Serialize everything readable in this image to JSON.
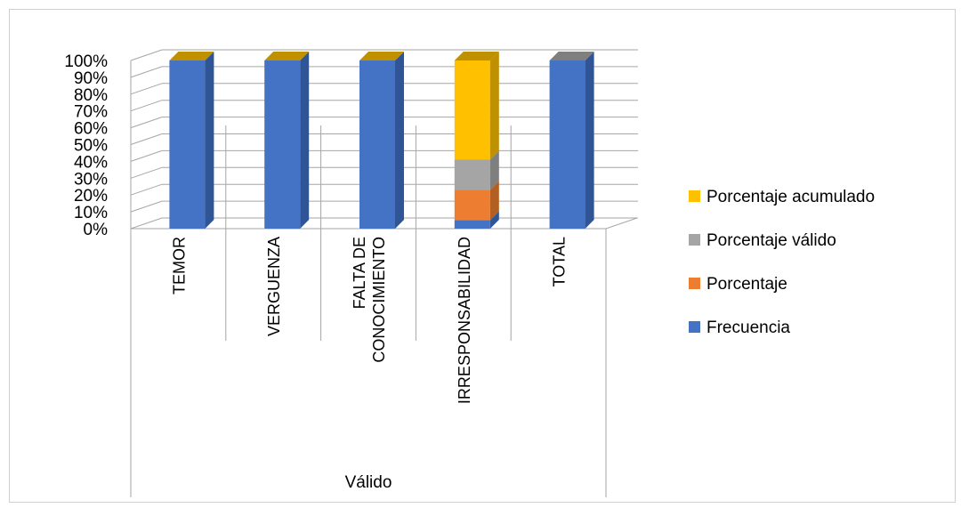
{
  "chart_data": {
    "type": "bar",
    "stacked": "percent",
    "three_d": true,
    "categories": [
      "TEMOR",
      "VERGUENZA",
      "FALTA DE CONOCIMIENTO",
      "IRRESPONSABILIDAD",
      "TOTAL"
    ],
    "category_lines": [
      [
        "TEMOR"
      ],
      [
        "VERGUENZA"
      ],
      [
        "FALTA DE",
        "CONOCIMIENTO"
      ],
      [
        "IRRESPONSABILIDAD"
      ],
      [
        "TOTAL"
      ]
    ],
    "group_label": "Válido",
    "series": [
      {
        "name": "Frecuencia",
        "color": "#4472C4",
        "side": "#2F5597",
        "values": [
          100,
          100,
          100,
          5,
          100
        ]
      },
      {
        "name": "Porcentaje",
        "color": "#ED7D31",
        "side": "#B45F22",
        "values": [
          0,
          0,
          0,
          18,
          0
        ]
      },
      {
        "name": "Porcentaje válido",
        "color": "#A5A5A5",
        "side": "#7F7F7F",
        "values": [
          0,
          0,
          0,
          18,
          0
        ]
      },
      {
        "name": "Porcentaje acumulado",
        "color": "#FFC000",
        "side": "#BF9000",
        "values": [
          0,
          0,
          0,
          59,
          0
        ]
      }
    ],
    "top_color": "#BF9000",
    "ylim": [
      0,
      100
    ],
    "yticks": [
      "0%",
      "10%",
      "20%",
      "30%",
      "40%",
      "50%",
      "60%",
      "70%",
      "80%",
      "90%",
      "100%"
    ],
    "grid": true,
    "legend": "right"
  }
}
